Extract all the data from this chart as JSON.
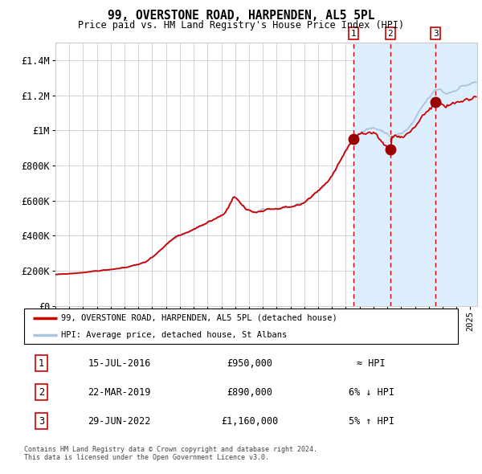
{
  "title1": "99, OVERSTONE ROAD, HARPENDEN, AL5 5PL",
  "title2": "Price paid vs. HM Land Registry's House Price Index (HPI)",
  "hpi_label": "HPI: Average price, detached house, St Albans",
  "property_label": "99, OVERSTONE ROAD, HARPENDEN, AL5 5PL (detached house)",
  "transactions": [
    {
      "num": 1,
      "date": "15-JUL-2016",
      "price": 950000,
      "vs_hpi": "≈ HPI",
      "date_decimal": 2016.54
    },
    {
      "num": 2,
      "date": "22-MAR-2019",
      "price": 890000,
      "vs_hpi": "6% ↓ HPI",
      "date_decimal": 2019.22
    },
    {
      "num": 3,
      "date": "29-JUN-2022",
      "price": 1160000,
      "vs_hpi": "5% ↑ HPI",
      "date_decimal": 2022.49
    }
  ],
  "ylim": [
    0,
    1500000
  ],
  "xlim_start": 1995.0,
  "xlim_end": 2025.5,
  "yticks": [
    0,
    200000,
    400000,
    600000,
    800000,
    1000000,
    1200000,
    1400000
  ],
  "ytick_labels": [
    "£0",
    "£200K",
    "£400K",
    "£600K",
    "£800K",
    "£1M",
    "£1.2M",
    "£1.4M"
  ],
  "background_color": "#ffffff",
  "grid_color": "#cccccc",
  "hpi_line_color": "#aac4dd",
  "property_line_color": "#cc0000",
  "shade_color": "#ddeeff",
  "dashed_line_color": "#cc0000",
  "marker_color": "#990000",
  "footnote1": "Contains HM Land Registry data © Crown copyright and database right 2024.",
  "footnote2": "This data is licensed under the Open Government Licence v3.0.",
  "trans_prices": [
    950000,
    890000,
    1160000
  ]
}
